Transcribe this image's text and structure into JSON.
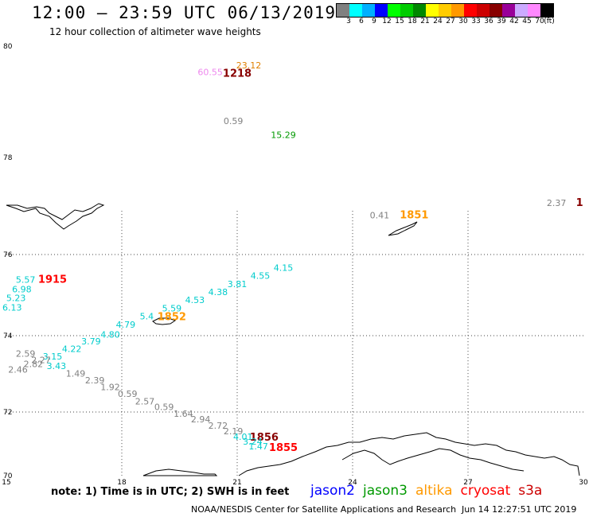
{
  "header": {
    "title": "12:00 — 23:59 UTC 06/13/2019",
    "subtitle": "12 hour collection of altimeter wave heights"
  },
  "colorbar": {
    "colors": [
      "#808080",
      "#00ffff",
      "#00b0ff",
      "#0000ff",
      "#00ff00",
      "#00cc00",
      "#008800",
      "#ffff00",
      "#ffcc00",
      "#ff9900",
      "#ff0000",
      "#cc0000",
      "#880000",
      "#990099",
      "#ccaaff",
      "#ff88ff",
      "#000000"
    ],
    "labels": [
      "3",
      "6",
      "9",
      "12",
      "15",
      "18",
      "21",
      "24",
      "27",
      "30",
      "33",
      "36",
      "39",
      "42",
      "45",
      "70",
      "(ft)"
    ]
  },
  "axes": {
    "lat_labels": [
      "80",
      "78",
      "76",
      "74",
      "72",
      "70"
    ],
    "lon_labels": [
      "15",
      "18",
      "21",
      "24",
      "27",
      "30"
    ]
  },
  "observations": [
    {
      "text": "23.12",
      "color": "#e08000",
      "lon": 21.3,
      "lat": 79.6
    },
    {
      "text": "60.55",
      "color": "#ee88ee",
      "lon": 20.3,
      "lat": 79.48
    },
    {
      "text": "1218",
      "color": "#880000",
      "lon": 21.0,
      "lat": 79.45,
      "kind": "time"
    },
    {
      "text": "0.59",
      "color": "#808080",
      "lon": 20.9,
      "lat": 78.6
    },
    {
      "text": "15.29",
      "color": "#009900",
      "lon": 22.2,
      "lat": 78.35
    },
    {
      "text": "2.37",
      "color": "#808080",
      "lon": 29.3,
      "lat": 77.0
    },
    {
      "text": "1",
      "color": "#880000",
      "lon": 29.9,
      "lat": 77.0,
      "kind": "time"
    },
    {
      "text": "0.41",
      "color": "#808080",
      "lon": 24.7,
      "lat": 76.75
    },
    {
      "text": "1851",
      "color": "#ff9900",
      "lon": 25.6,
      "lat": 76.75,
      "kind": "time"
    },
    {
      "text": "4.15",
      "color": "#00cccc",
      "lon": 22.2,
      "lat": 75.6
    },
    {
      "text": "4.55",
      "color": "#00cccc",
      "lon": 21.6,
      "lat": 75.4
    },
    {
      "text": "3.81",
      "color": "#00cccc",
      "lon": 21.0,
      "lat": 75.2
    },
    {
      "text": "4.38",
      "color": "#00cccc",
      "lon": 20.5,
      "lat": 75.0
    },
    {
      "text": "4.53",
      "color": "#00cccc",
      "lon": 19.9,
      "lat": 74.8
    },
    {
      "text": "5.59",
      "color": "#00cccc",
      "lon": 19.3,
      "lat": 74.6
    },
    {
      "text": "5.57",
      "color": "#00cccc",
      "lon": 15.5,
      "lat": 75.3
    },
    {
      "text": "1915",
      "color": "#ff0000",
      "lon": 16.2,
      "lat": 75.3,
      "kind": "time"
    },
    {
      "text": "6.98",
      "color": "#00cccc",
      "lon": 15.4,
      "lat": 75.07
    },
    {
      "text": "5.23",
      "color": "#00cccc",
      "lon": 15.25,
      "lat": 74.85
    },
    {
      "text": "6.13",
      "color": "#00cccc",
      "lon": 15.15,
      "lat": 74.62
    },
    {
      "text": "5.4",
      "color": "#00cccc",
      "lon": 18.65,
      "lat": 74.4
    },
    {
      "text": "1852",
      "color": "#ff9900",
      "lon": 19.3,
      "lat": 74.38,
      "kind": "time"
    },
    {
      "text": "4.79",
      "color": "#00cccc",
      "lon": 18.1,
      "lat": 74.2
    },
    {
      "text": "4.80",
      "color": "#00cccc",
      "lon": 17.7,
      "lat": 73.95
    },
    {
      "text": "3.79",
      "color": "#00cccc",
      "lon": 17.2,
      "lat": 73.77
    },
    {
      "text": "4.22",
      "color": "#00cccc",
      "lon": 16.7,
      "lat": 73.57
    },
    {
      "text": "2.59",
      "color": "#808080",
      "lon": 15.5,
      "lat": 73.45
    },
    {
      "text": "3.15",
      "color": "#00cccc",
      "lon": 16.2,
      "lat": 73.38
    },
    {
      "text": "2.27",
      "color": "#808080",
      "lon": 15.9,
      "lat": 73.28
    },
    {
      "text": "2.82",
      "color": "#808080",
      "lon": 15.7,
      "lat": 73.18
    },
    {
      "text": "3.43",
      "color": "#00cccc",
      "lon": 16.3,
      "lat": 73.13
    },
    {
      "text": "2.46",
      "color": "#808080",
      "lon": 15.3,
      "lat": 73.03
    },
    {
      "text": "1.49",
      "color": "#808080",
      "lon": 16.8,
      "lat": 72.93
    },
    {
      "text": "2.39",
      "color": "#808080",
      "lon": 17.3,
      "lat": 72.75
    },
    {
      "text": "1.92",
      "color": "#808080",
      "lon": 17.7,
      "lat": 72.57
    },
    {
      "text": "0.59",
      "color": "#808080",
      "lon": 18.15,
      "lat": 72.4
    },
    {
      "text": "2.57",
      "color": "#808080",
      "lon": 18.6,
      "lat": 72.2
    },
    {
      "text": "0.59",
      "color": "#808080",
      "lon": 19.1,
      "lat": 72.05
    },
    {
      "text": "1.64",
      "color": "#808080",
      "lon": 19.6,
      "lat": 71.85
    },
    {
      "text": "2.94",
      "color": "#808080",
      "lon": 20.05,
      "lat": 71.67
    },
    {
      "text": "2.72",
      "color": "#808080",
      "lon": 20.5,
      "lat": 71.48
    },
    {
      "text": "2.19",
      "color": "#808080",
      "lon": 20.9,
      "lat": 71.3
    },
    {
      "text": "4.01",
      "color": "#00cccc",
      "lon": 21.15,
      "lat": 71.12
    },
    {
      "text": "1856",
      "color": "#880000",
      "lon": 21.7,
      "lat": 71.1,
      "kind": "time"
    },
    {
      "text": "3.24",
      "color": "#00cccc",
      "lon": 21.4,
      "lat": 70.97
    },
    {
      "text": "1.47",
      "color": "#00cccc",
      "lon": 21.55,
      "lat": 70.82
    },
    {
      "text": "1855",
      "color": "#ff0000",
      "lon": 22.2,
      "lat": 70.78,
      "kind": "time"
    }
  ],
  "footer": {
    "note": "note:  1) Time is in UTC;  2) SWH is in feet",
    "legend": [
      {
        "name": "jason2",
        "color": "#0000ff"
      },
      {
        "name": "jason3",
        "color": "#009900"
      },
      {
        "name": "altika",
        "color": "#ff9900"
      },
      {
        "name": "cryosat",
        "color": "#ff0000"
      },
      {
        "name": "s3a",
        "color": "#cc0000"
      }
    ],
    "credit": "NOAA/NESDIS Center for Satellite Applications and Research",
    "timestamp": "Jun 14 12:27:51 UTC 2019"
  }
}
